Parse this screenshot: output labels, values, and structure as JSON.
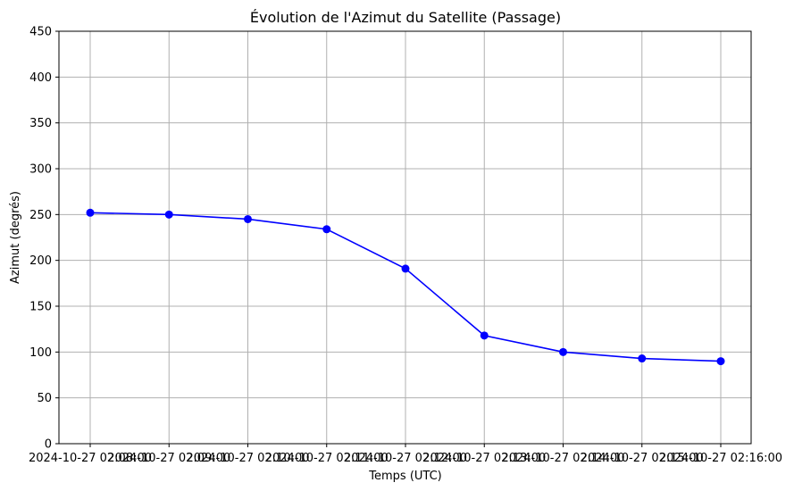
{
  "chart_data": {
    "type": "line",
    "title": "Évolution de l'Azimut du Satellite (Passage)",
    "xlabel": "Temps (UTC)",
    "ylabel": "Azimut (degrés)",
    "x": [
      "2024-10-27 02:08:00",
      "2024-10-27 02:09:00",
      "2024-10-27 02:10:00",
      "2024-10-27 02:11:00",
      "2024-10-27 02:12:00",
      "2024-10-27 02:13:00",
      "2024-10-27 02:14:00",
      "2024-10-27 02:15:00",
      "2024-10-27 02:16:00"
    ],
    "x_tick_labels": [
      "2024-10-27 02:08:00",
      "2024-10-27 02:09:00",
      "2024-10-27 02:10:00",
      "2024-10-27 02:11:00",
      "2024-10-27 02:12:00",
      "2024-10-27 02:13:00",
      "2024-10-27 02:14:00",
      "2024-10-27 02:15:00",
      "2024-10-27 02:16:00"
    ],
    "series": [
      {
        "values": [
          252,
          250,
          245,
          234,
          191,
          118,
          100,
          93,
          90
        ],
        "color": "#0000ff",
        "marker": "circle"
      }
    ],
    "ylim": [
      0,
      450
    ],
    "yticks": [
      0,
      50,
      100,
      150,
      200,
      250,
      300,
      350,
      400,
      450
    ],
    "grid": true
  }
}
